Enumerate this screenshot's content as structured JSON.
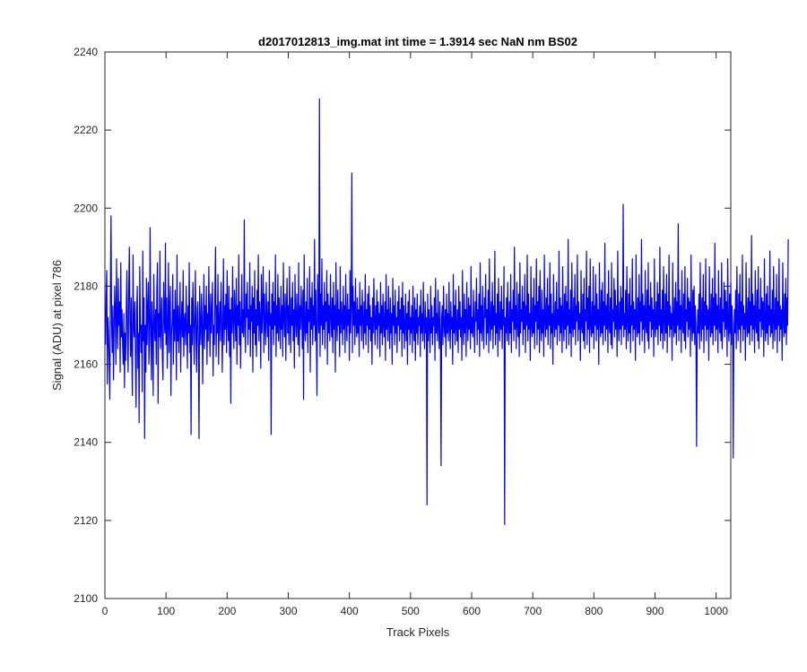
{
  "chart_data": {
    "type": "line",
    "title": "d2017012813_img.mat int time = 1.3914 sec  NaN nm BS02",
    "xlabel": "Track Pixels",
    "ylabel": "Signal (ADU) at pixel 786",
    "xlim": [
      0,
      1024
    ],
    "ylim": [
      2100,
      2240
    ],
    "xticks": [
      0,
      100,
      200,
      300,
      400,
      500,
      600,
      700,
      800,
      900,
      1000
    ],
    "yticks": [
      2100,
      2120,
      2140,
      2160,
      2180,
      2200,
      2220,
      2240
    ],
    "grid": false,
    "series": [
      {
        "color": "#0000ff",
        "x_start": 1,
        "x_step": 1,
        "values": [
          2165,
          2178,
          2184,
          2155,
          2172,
          2168,
          2160,
          2151,
          2178,
          2198,
          2170,
          2163,
          2175,
          2156,
          2168,
          2180,
          2173,
          2160,
          2187,
          2171,
          2164,
          2182,
          2170,
          2176,
          2158,
          2186,
          2167,
          2174,
          2165,
          2160,
          2173,
          2154,
          2168,
          2161,
          2175,
          2184,
          2166,
          2158,
          2179,
          2190,
          2171,
          2162,
          2177,
          2163,
          2152,
          2188,
          2170,
          2167,
          2176,
          2161,
          2149,
          2174,
          2180,
          2159,
          2168,
          2145,
          2185,
          2172,
          2163,
          2170,
          2153,
          2189,
          2166,
          2177,
          2141,
          2170,
          2158,
          2182,
          2165,
          2174,
          2181,
          2160,
          2167,
          2195,
          2170,
          2156,
          2176,
          2168,
          2152,
          2183,
          2171,
          2166,
          2174,
          2160,
          2179,
          2186,
          2150,
          2173,
          2167,
          2189,
          2164,
          2170,
          2177,
          2162,
          2156,
          2181,
          2172,
          2168,
          2191,
          2165,
          2177,
          2159,
          2170,
          2186,
          2163,
          2174,
          2180,
          2152,
          2168,
          2171,
          2183,
          2160,
          2174,
          2166,
          2179,
          2170,
          2156,
          2188,
          2166,
          2175,
          2163,
          2171,
          2181,
          2158,
          2170,
          2176,
          2167,
          2184,
          2162,
          2171,
          2173,
          2165,
          2180,
          2169,
          2159,
          2175,
          2168,
          2186,
          2163,
          2170,
          2142,
          2177,
          2165,
          2181,
          2172,
          2160,
          2171,
          2184,
          2167,
          2158,
          2174,
          2176,
          2163,
          2141,
          2180,
          2170,
          2165,
          2178,
          2172,
          2155,
          2171,
          2183,
          2164,
          2175,
          2169,
          2180,
          2160,
          2173,
          2166,
          2185,
          2171,
          2162,
          2178,
          2168,
          2174,
          2181,
          2157,
          2170,
          2165,
          2179,
          2190,
          2162,
          2175,
          2168,
          2183,
          2160,
          2171,
          2176,
          2166,
          2181,
          2173,
          2158,
          2170,
          2187,
          2165,
          2175,
          2169,
          2178,
          2163,
          2184,
          2171,
          2166,
          2180,
          2162,
          2174,
          2150,
          2177,
          2168,
          2185,
          2171,
          2164,
          2179,
          2173,
          2166,
          2182,
          2160,
          2175,
          2170,
          2188,
          2165,
          2176,
          2159,
          2170,
          2183,
          2168,
          2174,
          2167,
          2197,
          2170,
          2163,
          2178,
          2172,
          2181,
          2165,
          2174,
          2169,
          2186,
          2162,
          2175,
          2171,
          2180,
          2158,
          2177,
          2168,
          2184,
          2165,
          2174,
          2162,
          2179,
          2170,
          2188,
          2166,
          2176,
          2172,
          2159,
          2183,
          2168,
          2174,
          2185,
          2163,
          2178,
          2170,
          2165,
          2181,
          2172,
          2167,
          2176,
          2161,
          2184,
          2170,
          2173,
          2142,
          2178,
          2169,
          2181,
          2165,
          2176,
          2170,
          2188,
          2162,
          2175,
          2168,
          2183,
          2166,
          2177,
          2171,
          2164,
          2180,
          2169,
          2175,
          2162,
          2186,
          2172,
          2167,
          2178,
          2161,
          2174,
          2182,
          2168,
          2175,
          2165,
          2185,
          2171,
          2163,
          2177,
          2170,
          2181,
          2166,
          2174,
          2159,
          2183,
          2172,
          2167,
          2178,
          2170,
          2165,
          2186,
          2162,
          2175,
          2169,
          2180,
          2173,
          2164,
          2179,
          2151,
          2188,
          2170,
          2166,
          2176,
          2168,
          2182,
          2163,
          2174,
          2171,
          2185,
          2158,
          2177,
          2169,
          2181,
          2165,
          2175,
          2170,
          2192,
          2166,
          2179,
          2167,
          2152,
          2183,
          2173,
          2168,
          2228,
          2162,
          2178,
          2170,
          2187,
          2165,
          2175,
          2169,
          2181,
          2164,
          2176,
          2171,
          2184,
          2160,
          2178,
          2168,
          2175,
          2166,
          2183,
          2172,
          2167,
          2177,
          2163,
          2181,
          2169,
          2175,
          2158,
          2186,
          2171,
          2166,
          2179,
          2170,
          2174,
          2162,
          2185,
          2168,
          2176,
          2172,
          2165,
          2180,
          2169,
          2175,
          2163,
          2183,
          2171,
          2166,
          2178,
          2170,
          2174,
          2161,
          2184,
          2168,
          2175,
          2209,
          2163,
          2180,
          2170,
          2176,
          2165,
          2182,
          2171,
          2167,
          2177,
          2168,
          2174,
          2162,
          2181,
          2170,
          2175,
          2166,
          2179,
          2172,
          2164,
          2176,
          2168,
          2183,
          2165,
          2174,
          2170,
          2178,
          2163,
          2180,
          2169,
          2175,
          2166,
          2172,
          2160,
          2177,
          2168,
          2182,
          2171,
          2165,
          2175,
          2169,
          2179,
          2164,
          2176,
          2170,
          2173,
          2162,
          2181,
          2168,
          2175,
          2165,
          2178,
          2170,
          2167,
          2176,
          2161,
          2183,
          2169,
          2174,
          2166,
          2180,
          2171,
          2164,
          2177,
          2168,
          2173,
          2160,
          2182,
          2170,
          2175,
          2165,
          2179,
          2168,
          2172,
          2163,
          2176,
          2170,
          2180,
          2166,
          2174,
          2169,
          2177,
          2162,
          2181,
          2168,
          2175,
          2164,
          2170,
          2178,
          2166,
          2173,
          2160,
          2176,
          2169,
          2179,
          2165,
          2172,
          2168,
          2175,
          2163,
          2180,
          2170,
          2166,
          2177,
          2161,
          2174,
          2168,
          2178,
          2165,
          2172,
          2170,
          2175,
          2162,
          2179,
          2168,
          2173,
          2166,
          2181,
          2170,
          2164,
          2176,
          2168,
          2172,
          2124,
          2178,
          2166,
          2174,
          2170,
          2163,
          2180,
          2168,
          2175,
          2165,
          2172,
          2170,
          2177,
          2161,
          2182,
          2168,
          2173,
          2166,
          2179,
          2170,
          2164,
          2176,
          2168,
          2134,
          2172,
          2175,
          2165,
          2180,
          2170,
          2167,
          2174,
          2162,
          2178,
          2168,
          2173,
          2166,
          2181,
          2170,
          2164,
          2176,
          2169,
          2172,
          2160,
          2183,
          2168,
          2175,
          2165,
          2179,
          2170,
          2166,
          2174,
          2163,
          2180,
          2169,
          2176,
          2167,
          2172,
          2161,
          2184,
          2170,
          2165,
          2178,
          2168,
          2174,
          2162,
          2181,
          2171,
          2166,
          2177,
          2169,
          2175,
          2164,
          2185,
          2168,
          2172,
          2167,
          2179,
          2170,
          2163,
          2176,
          2171,
          2182,
          2165,
          2174,
          2169,
          2178,
          2162,
          2186,
          2168,
          2175,
          2166,
          2180,
          2170,
          2164,
          2177,
          2172,
          2183,
          2165,
          2174,
          2168,
          2179,
          2163,
          2187,
          2171,
          2166,
          2176,
          2169,
          2181,
          2164,
          2175,
          2170,
          2189,
          2165,
          2173,
          2168,
          2178,
          2162,
          2182,
          2171,
          2166,
          2176,
          2169,
          2180,
          2164,
          2174,
          2170,
          2185,
          2119,
          2172,
          2168,
          2177,
          2166,
          2181,
          2170,
          2165,
          2176,
          2168,
          2183,
          2163,
          2174,
          2171,
          2179,
          2166,
          2190,
          2169,
          2175,
          2164,
          2181,
          2170,
          2167,
          2178,
          2162,
          2186,
          2168,
          2174,
          2171,
          2180,
          2165,
          2176,
          2169,
          2183,
          2163,
          2175,
          2170,
          2188,
          2166,
          2178,
          2169,
          2173,
          2161,
          2185,
          2170,
          2167,
          2177,
          2168,
          2182,
          2164,
          2175,
          2171,
          2187,
          2165,
          2176,
          2169,
          2180,
          2163,
          2184,
          2170,
          2166,
          2179,
          2168,
          2174,
          2162,
          2188,
          2171,
          2167,
          2177,
          2169,
          2182,
          2165,
          2175,
          2170,
          2186,
          2164,
          2178,
          2168,
          2173,
          2160,
          2183,
          2171,
          2167,
          2176,
          2169,
          2181,
          2165,
          2174,
          2170,
          2189,
          2166,
          2177,
          2168,
          2175,
          2163,
          2185,
          2171,
          2166,
          2178,
          2169,
          2180,
          2164,
          2176,
          2170,
          2192,
          2165,
          2174,
          2168,
          2179,
          2162,
          2186,
          2170,
          2167,
          2177,
          2169,
          2183,
          2165,
          2175,
          2171,
          2188,
          2166,
          2176,
          2169,
          2173,
          2161,
          2184,
          2170,
          2168,
          2178,
          2166,
          2182,
          2164,
          2174,
          2171,
          2189,
          2165,
          2177,
          2169,
          2180,
          2163,
          2187,
          2170,
          2167,
          2176,
          2168,
          2185,
          2164,
          2175,
          2170,
          2183,
          2166,
          2178,
          2169,
          2174,
          2160,
          2186,
          2171,
          2167,
          2179,
          2168,
          2181,
          2165,
          2176,
          2170,
          2191,
          2166,
          2175,
          2169,
          2178,
          2163,
          2184,
          2170,
          2168,
          2177,
          2165,
          2186,
          2164,
          2174,
          2171,
          2182,
          2167,
          2179,
          2169,
          2175,
          2162,
          2189,
          2170,
          2166,
          2176,
          2169,
          2180,
          2165,
          2177,
          2170,
          2201,
          2167,
          2173,
          2169,
          2179,
          2164,
          2185,
          2171,
          2166,
          2178,
          2168,
          2182,
          2163,
          2175,
          2170,
          2187,
          2166,
          2176,
          2169,
          2174,
          2161,
          2188,
          2170,
          2167,
          2177,
          2168,
          2183,
          2165,
          2176,
          2171,
          2192,
          2166,
          2178,
          2169,
          2175,
          2163,
          2184,
          2170,
          2168,
          2179,
          2166,
          2186,
          2164,
          2175,
          2171,
          2181,
          2167,
          2177,
          2169,
          2174,
          2162,
          2187,
          2170,
          2167,
          2176,
          2169,
          2181,
          2165,
          2178,
          2170,
          2190,
          2166,
          2174,
          2168,
          2179,
          2164,
          2185,
          2171,
          2166,
          2178,
          2168,
          2183,
          2163,
          2176,
          2170,
          2188,
          2167,
          2175,
          2169,
          2173,
          2161,
          2186,
          2171,
          2167,
          2177,
          2168,
          2181,
          2165,
          2176,
          2170,
          2196,
          2166,
          2179,
          2169,
          2175,
          2163,
          2184,
          2170,
          2168,
          2178,
          2166,
          2185,
          2164,
          2174,
          2171,
          2182,
          2167,
          2177,
          2169,
          2176,
          2162,
          2188,
          2170,
          2166,
          2179,
          2168,
          2180,
          2165,
          2175,
          2170,
          2139,
          2167,
          2174,
          2168,
          2178,
          2164,
          2186,
          2171,
          2166,
          2177,
          2169,
          2183,
          2163,
          2176,
          2170,
          2187,
          2166,
          2175,
          2169,
          2174,
          2161,
          2185,
          2171,
          2167,
          2178,
          2168,
          2182,
          2165,
          2177,
          2170,
          2191,
          2166,
          2178,
          2169,
          2175,
          2163,
          2184,
          2170,
          2168,
          2177,
          2166,
          2186,
          2164,
          2174,
          2171,
          2181,
          2167,
          2179,
          2169,
          2176,
          2162,
          2187,
          2170,
          2166,
          2178,
          2168,
          2181,
          2165,
          2175,
          2170,
          2136,
          2167,
          2174,
          2168,
          2179,
          2164,
          2185,
          2171,
          2166,
          2178,
          2169,
          2183,
          2163,
          2176,
          2170,
          2188,
          2166,
          2175,
          2169,
          2173,
          2161,
          2186,
          2171,
          2167,
          2177,
          2168,
          2182,
          2165,
          2176,
          2170,
          2193,
          2166,
          2178,
          2169,
          2175,
          2163,
          2184,
          2170,
          2168,
          2179,
          2166,
          2185,
          2164,
          2174,
          2171,
          2182,
          2167,
          2177,
          2169,
          2176,
          2162,
          2187,
          2170,
          2166,
          2178,
          2168,
          2180,
          2165,
          2175,
          2170,
          2189,
          2167,
          2174,
          2168,
          2179,
          2164,
          2185,
          2171,
          2166,
          2177,
          2169,
          2183,
          2163,
          2176,
          2170,
          2187,
          2166,
          2175,
          2169,
          2174,
          2161,
          2186,
          2171,
          2167,
          2178,
          2168,
          2182,
          2165,
          2177,
          2170,
          2192
        ]
      }
    ]
  }
}
